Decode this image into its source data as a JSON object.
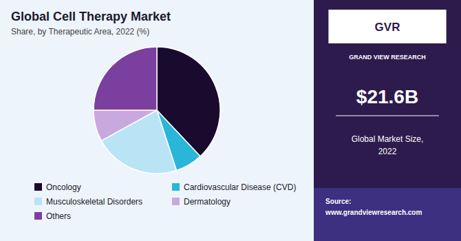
{
  "chart_data": {
    "type": "pie",
    "title": "Global Cell Therapy Market",
    "subtitle": "Share, by Therapeutic Area, 2022 (%)",
    "categories": [
      "Oncology",
      "Cardiovascular Disease (CVD)",
      "Musculoskeletal Disorders",
      "Dermatology",
      "Others"
    ],
    "values": [
      38,
      7,
      22,
      8,
      25
    ],
    "colors": [
      "#1a0a2e",
      "#29b6d8",
      "#b8e4f5",
      "#c9a8e0",
      "#7b3fa0"
    ],
    "legend": "bottom",
    "annotations": [
      "GVR",
      "GRAND VIEW RESEARCH",
      "$21.6B",
      "Global Market Size,\n2022",
      "Source:\nwww.grandviewresearch.com"
    ]
  }
}
